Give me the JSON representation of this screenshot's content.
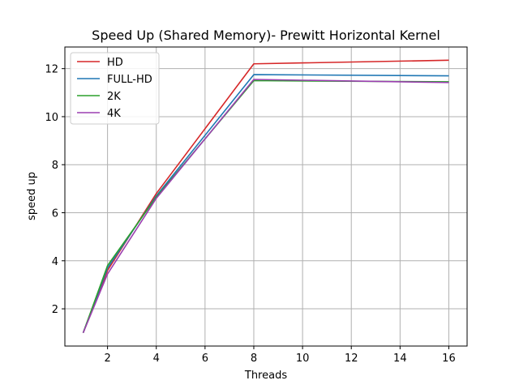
{
  "chart_data": {
    "type": "line",
    "title": "Speed Up (Shared Memory)- Prewitt Horizontal Kernel",
    "xlabel": "Threads",
    "ylabel": "speed up",
    "x": [
      1,
      2,
      4,
      8,
      16
    ],
    "xticks": [
      2,
      4,
      6,
      8,
      10,
      12,
      14,
      16
    ],
    "yticks": [
      2,
      4,
      6,
      8,
      10,
      12
    ],
    "xlim": [
      0.25,
      16.75
    ],
    "ylim": [
      0.45,
      12.9
    ],
    "grid": true,
    "legend_position": "upper-left",
    "series": [
      {
        "name": "HD",
        "color": "#d62728",
        "values": [
          1.0,
          3.6,
          6.8,
          12.2,
          12.35
        ]
      },
      {
        "name": "FULL-HD",
        "color": "#1f77b4",
        "values": [
          1.0,
          3.7,
          6.7,
          11.75,
          11.7
        ]
      },
      {
        "name": "2K",
        "color": "#2ca02c",
        "values": [
          1.0,
          3.8,
          6.65,
          11.5,
          11.45
        ]
      },
      {
        "name": "4K",
        "color": "#9b3fb0",
        "values": [
          1.0,
          3.45,
          6.6,
          11.55,
          11.42
        ]
      }
    ]
  }
}
